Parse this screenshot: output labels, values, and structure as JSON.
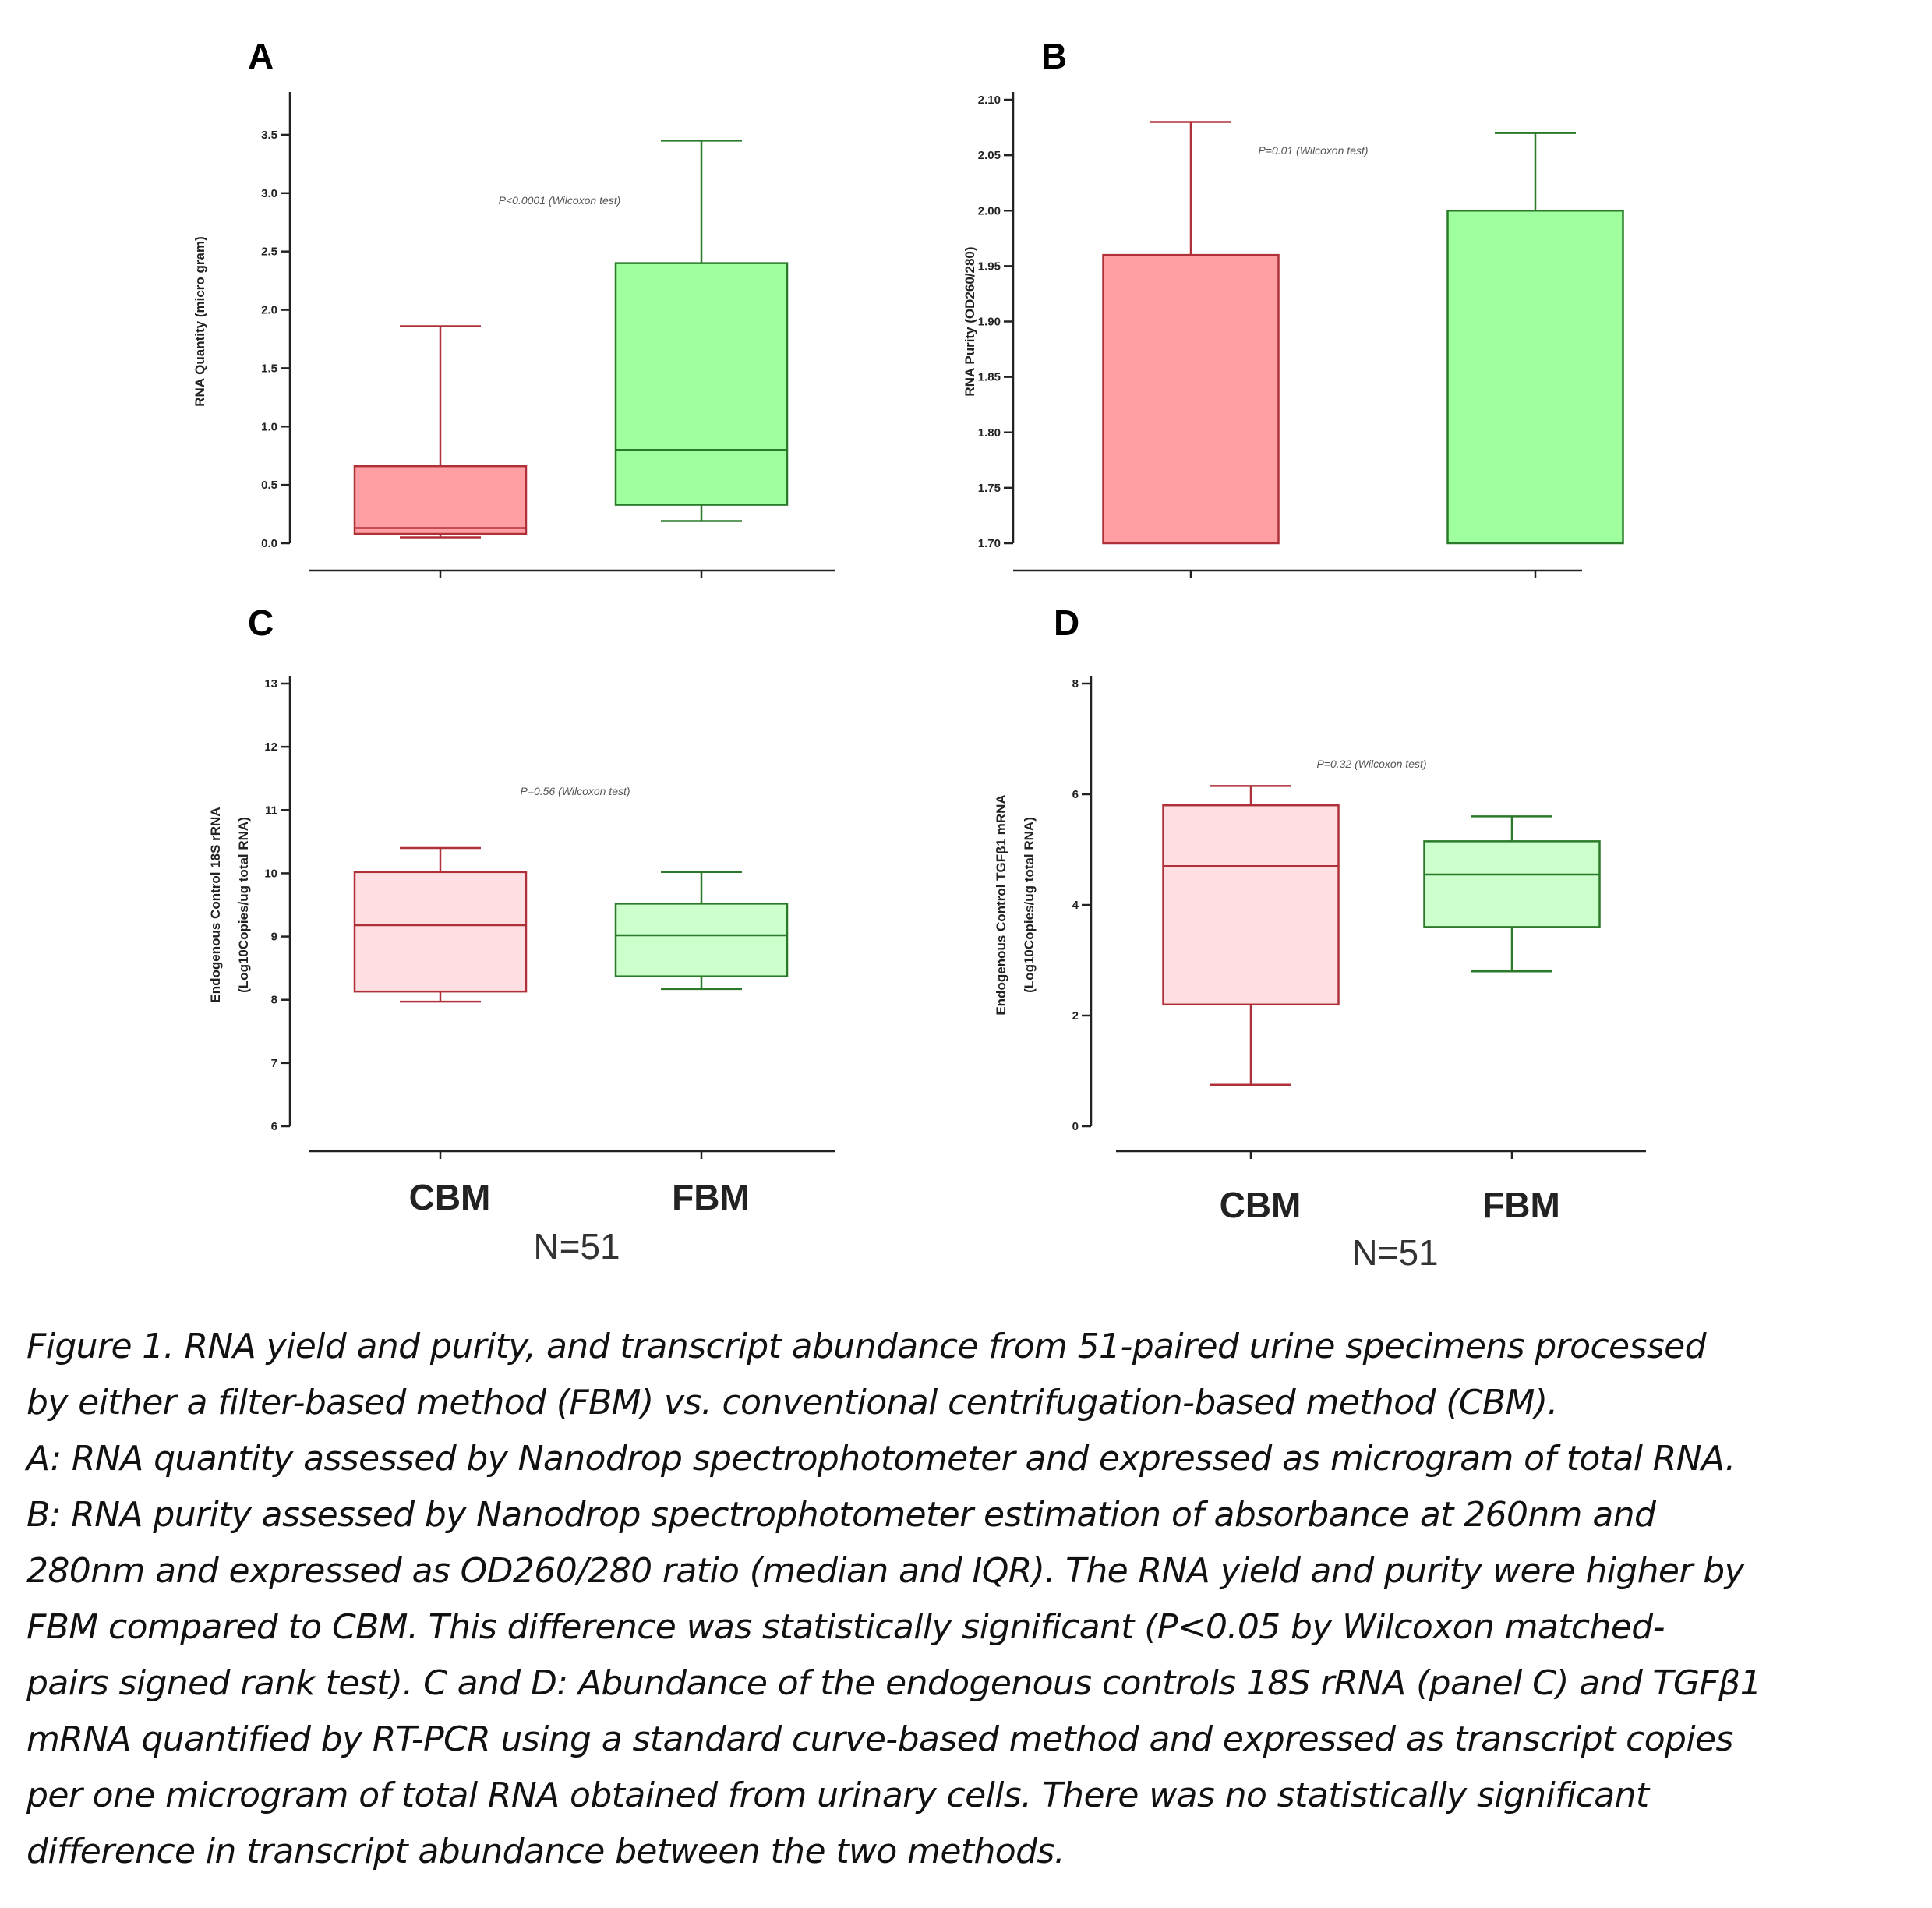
{
  "chart_data": [
    {
      "panel": "A",
      "type": "boxplot",
      "ylabel": "RNA Quantity (micro gram)",
      "ylim": [
        0,
        3.8
      ],
      "yticks": [
        0.0,
        0.5,
        1.0,
        1.5,
        2.0,
        2.5,
        3.0,
        3.5
      ],
      "ytick_labels": [
        "0.0",
        "0.5",
        "1.0",
        "1.5",
        "2.0",
        "2.5",
        "3.0",
        "3.5"
      ],
      "annotation": "P<0.0001 (Wilcoxon test)",
      "categories": [
        "CBM",
        "FBM"
      ],
      "boxes": [
        {
          "category": "CBM",
          "min": 0.05,
          "q1": 0.08,
          "median": 0.13,
          "q3": 0.66,
          "max": 1.86
        },
        {
          "category": "FBM",
          "min": 0.19,
          "q1": 0.33,
          "median": 0.8,
          "q3": 2.4,
          "max": 3.45
        }
      ]
    },
    {
      "panel": "B",
      "type": "boxplot",
      "ylabel": "RNA Purity (OD260/280)",
      "ylim": [
        1.7,
        2.1
      ],
      "yticks": [
        1.7,
        1.75,
        1.8,
        1.85,
        1.9,
        1.95,
        2.0,
        2.05,
        2.1
      ],
      "ytick_labels": [
        "1.70",
        "1.75",
        "1.80",
        "1.85",
        "1.90",
        "1.95",
        "2.00",
        "2.05",
        "2.10"
      ],
      "annotation": "P=0.01 (Wilcoxon test)",
      "categories": [
        "CBM",
        "FBM"
      ],
      "boxes": [
        {
          "category": "CBM",
          "min": 1.7,
          "q1": 1.7,
          "median": 1.7,
          "q3": 1.96,
          "max": 2.08
        },
        {
          "category": "FBM",
          "min": 1.7,
          "q1": 1.7,
          "median": 1.7,
          "q3": 2.0,
          "max": 2.07
        }
      ]
    },
    {
      "panel": "C",
      "type": "boxplot",
      "ylabel": "Endogenous Control 18S rRNA",
      "ylabel2": "(Log10Copies/ug total RNA)",
      "ylim": [
        6,
        13
      ],
      "yticks": [
        6,
        7,
        8,
        9,
        10,
        11,
        12,
        13
      ],
      "ytick_labels": [
        "6",
        "7",
        "8",
        "9",
        "10",
        "11",
        "12",
        "13"
      ],
      "annotation": "P=0.56 (Wilcoxon test)",
      "categories": [
        "CBM",
        "FBM"
      ],
      "boxes": [
        {
          "category": "CBM",
          "min": 7.97,
          "q1": 8.13,
          "median": 9.18,
          "q3": 10.02,
          "max": 10.4
        },
        {
          "category": "FBM",
          "min": 8.17,
          "q1": 8.37,
          "median": 9.02,
          "q3": 9.52,
          "max": 10.02
        }
      ]
    },
    {
      "panel": "D",
      "type": "boxplot",
      "ylabel": "Endogenous Control TGFβ1 mRNA",
      "ylabel2": "(Log10Copies/ug total RNA)",
      "ylim": [
        0,
        8
      ],
      "yticks": [
        0,
        2,
        4,
        6,
        8
      ],
      "ytick_labels": [
        "0",
        "2",
        "4",
        "6",
        "8"
      ],
      "annotation": "P=0.32 (Wilcoxon test)",
      "categories": [
        "CBM",
        "FBM"
      ],
      "boxes": [
        {
          "category": "CBM",
          "min": 0.75,
          "q1": 2.2,
          "median": 4.7,
          "q3": 5.8,
          "max": 6.15
        },
        {
          "category": "FBM",
          "min": 2.8,
          "q1": 3.6,
          "median": 4.55,
          "q3": 5.15,
          "max": 5.6
        }
      ]
    }
  ],
  "colors": {
    "cbm_stroke": "#b0303a",
    "fbm_stroke": "#2a7a2a",
    "cbm_fill_strong": "#ff9fa3",
    "fbm_fill_strong": "#9fff9f",
    "cbm_fill_light": "#ffdfe1",
    "fbm_fill_light": "#ccffcc"
  },
  "n_label": "N=51",
  "caption": {
    "lines": [
      "Figure 1. RNA yield and purity, and transcript abundance from 51-paired urine specimens processed",
      "by either a filter-based method (FBM) vs. conventional centrifugation-based method (CBM).",
      "A: RNA quantity assessed by Nanodrop spectrophotometer and expressed as microgram of total RNA.",
      "B: RNA purity assessed by Nanodrop spectrophotometer estimation of absorbance at 260nm and",
      "280nm and expressed as OD260/280 ratio (median and IQR). The RNA yield and purity were higher by",
      "FBM compared to CBM. This difference was statistically significant (P<0.05 by Wilcoxon matched-",
      "pairs signed rank test). C and D: Abundance of the endogenous controls 18S rRNA (panel C) and TGFβ1",
      "mRNA quantified by RT-PCR using a standard curve-based method and expressed as transcript copies",
      "per one microgram of total RNA obtained from urinary cells. There was no statistically significant",
      "difference in transcript abundance between the two methods."
    ]
  }
}
